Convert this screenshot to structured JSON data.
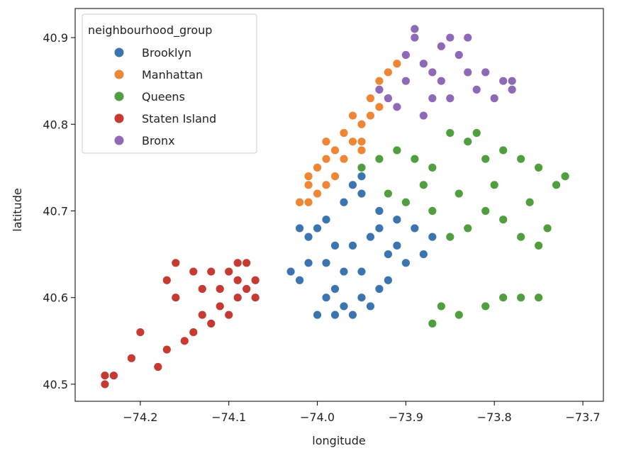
{
  "chart_data": {
    "type": "scatter",
    "xlabel": "longitude",
    "ylabel": "latitude",
    "xlim": [
      -74.2736,
      -73.6768
    ],
    "ylim": [
      40.4803,
      40.9336
    ],
    "xticks": [
      {
        "value": -74.2,
        "label": "−74.2"
      },
      {
        "value": -74.1,
        "label": "−74.1"
      },
      {
        "value": -74.0,
        "label": "−74.0"
      },
      {
        "value": -73.9,
        "label": "−73.9"
      },
      {
        "value": -73.8,
        "label": "−73.8"
      },
      {
        "value": -73.7,
        "label": "−73.7"
      }
    ],
    "yticks": [
      40.5,
      40.6,
      40.7,
      40.8,
      40.9
    ],
    "legend_title": "neighbourhood_group",
    "legend": "upper left",
    "series": [
      {
        "name": "Brooklyn",
        "color": "#3b75af",
        "x": [
          -74.03,
          -74.02,
          -74.01,
          -74.0,
          -73.99,
          -73.98,
          -73.97,
          -73.96,
          -73.95,
          -73.94,
          -73.93,
          -73.92,
          -73.9,
          -73.88,
          -73.87,
          -73.89,
          -73.91,
          -73.93,
          -73.95,
          -73.96,
          -73.95,
          -73.97,
          -73.99,
          -74.0,
          -74.01,
          -73.98,
          -73.96,
          -73.94,
          -73.92,
          -73.97,
          -73.99,
          -73.95,
          -73.93,
          -74.02,
          -73.91,
          -73.98
        ],
        "y": [
          40.63,
          40.62,
          40.64,
          40.58,
          40.6,
          40.58,
          40.59,
          40.58,
          40.6,
          40.59,
          40.61,
          40.62,
          40.64,
          40.65,
          40.67,
          40.68,
          40.69,
          40.7,
          40.72,
          40.73,
          40.74,
          40.71,
          40.69,
          40.68,
          40.67,
          40.66,
          40.66,
          40.67,
          40.65,
          40.63,
          40.64,
          40.63,
          40.68,
          40.68,
          40.66,
          40.61
        ]
      },
      {
        "name": "Manhattan",
        "color": "#ef8636",
        "x": [
          -74.01,
          -74.02,
          -74.0,
          -74.01,
          -73.99,
          -74.0,
          -73.99,
          -73.98,
          -73.98,
          -73.97,
          -73.96,
          -73.97,
          -73.95,
          -73.95,
          -73.94,
          -73.96,
          -73.94,
          -73.93,
          -73.93,
          -73.92,
          -73.91,
          -74.01,
          -73.99,
          -73.95
        ],
        "y": [
          40.71,
          40.71,
          40.72,
          40.73,
          40.73,
          40.75,
          40.76,
          40.74,
          40.77,
          40.76,
          40.78,
          40.79,
          40.78,
          40.8,
          40.81,
          40.81,
          40.83,
          40.82,
          40.85,
          40.86,
          40.87,
          40.74,
          40.78,
          40.77
        ]
      },
      {
        "name": "Queens",
        "color": "#519e3e",
        "x": [
          -73.95,
          -73.93,
          -73.91,
          -73.89,
          -73.87,
          -73.85,
          -73.83,
          -73.81,
          -73.79,
          -73.77,
          -73.75,
          -73.73,
          -73.72,
          -73.74,
          -73.75,
          -73.77,
          -73.79,
          -73.81,
          -73.83,
          -73.85,
          -73.87,
          -73.9,
          -73.92,
          -73.88,
          -73.84,
          -73.8,
          -73.76,
          -73.86,
          -73.84,
          -73.87,
          -73.81,
          -73.79,
          -73.77,
          -73.75,
          -73.82
        ],
        "y": [
          40.75,
          40.76,
          40.77,
          40.76,
          40.75,
          40.79,
          40.78,
          40.76,
          40.77,
          40.76,
          40.75,
          40.73,
          40.74,
          40.68,
          40.66,
          40.67,
          40.69,
          40.7,
          40.68,
          40.67,
          40.7,
          40.71,
          40.72,
          40.73,
          40.72,
          40.73,
          40.71,
          40.59,
          40.58,
          40.57,
          40.59,
          40.6,
          40.6,
          40.6,
          40.79
        ]
      },
      {
        "name": "Staten Island",
        "color": "#c53a32",
        "x": [
          -74.24,
          -74.23,
          -74.24,
          -74.21,
          -74.2,
          -74.18,
          -74.17,
          -74.15,
          -74.14,
          -74.13,
          -74.12,
          -74.11,
          -74.1,
          -74.09,
          -74.08,
          -74.07,
          -74.07,
          -74.08,
          -74.09,
          -74.1,
          -74.12,
          -74.14,
          -74.16,
          -74.17,
          -74.16,
          -74.11,
          -74.13,
          -74.09
        ],
        "y": [
          40.51,
          40.51,
          40.5,
          40.53,
          40.56,
          40.52,
          40.54,
          40.55,
          40.56,
          40.58,
          40.57,
          40.59,
          40.58,
          40.6,
          40.61,
          40.6,
          40.62,
          40.64,
          40.64,
          40.63,
          40.63,
          40.63,
          40.64,
          40.62,
          40.6,
          40.61,
          40.61,
          40.62
        ]
      },
      {
        "name": "Bronx",
        "color": "#8d69b8",
        "x": [
          -73.93,
          -73.92,
          -73.91,
          -73.9,
          -73.9,
          -73.89,
          -73.89,
          -73.88,
          -73.87,
          -73.86,
          -73.86,
          -73.85,
          -73.84,
          -73.83,
          -73.82,
          -73.85,
          -73.88,
          -73.8,
          -73.79,
          -73.78,
          -73.78,
          -73.81,
          -73.83,
          -73.87
        ],
        "y": [
          40.84,
          40.83,
          40.82,
          40.85,
          40.88,
          40.9,
          40.91,
          40.87,
          40.83,
          40.85,
          40.89,
          40.9,
          40.88,
          40.86,
          40.84,
          40.83,
          40.81,
          40.83,
          40.85,
          40.85,
          40.84,
          40.86,
          40.9,
          40.86
        ]
      }
    ]
  }
}
